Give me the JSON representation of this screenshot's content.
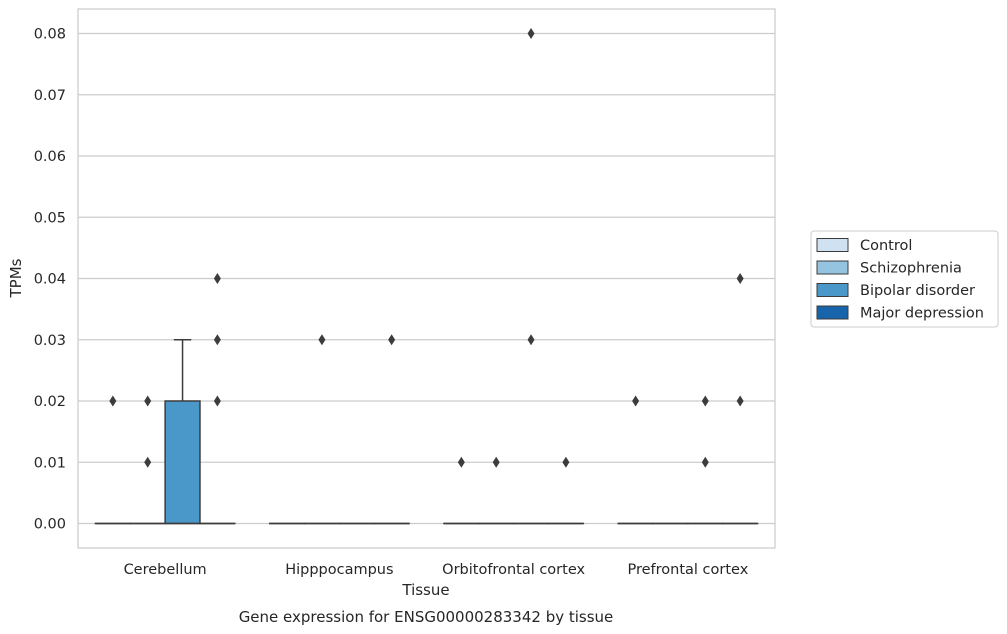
{
  "chart_data": {
    "type": "box",
    "title": "Gene expression for ENSG00000283342 by tissue",
    "xlabel": "Tissue",
    "ylabel": "TPMs",
    "ylim": [
      -0.004,
      0.084
    ],
    "yticks": [
      0.0,
      0.01,
      0.02,
      0.03,
      0.04,
      0.05,
      0.06,
      0.07,
      0.08
    ],
    "ytick_labels": [
      "0.00",
      "0.01",
      "0.02",
      "0.03",
      "0.04",
      "0.05",
      "0.06",
      "0.07",
      "0.08"
    ],
    "grid": true,
    "legend_position": "right",
    "categories": [
      "Cerebellum",
      "Hipppocampus",
      "Orbitofrontal cortex",
      "Prefrontal cortex"
    ],
    "series": [
      {
        "name": "Control",
        "color": "#d0e1f2",
        "boxes": [
          {
            "q1": 0,
            "median": 0,
            "q3": 0,
            "whislo": 0,
            "whishi": 0,
            "outliers": [
              0.02
            ]
          },
          {
            "q1": 0,
            "median": 0,
            "q3": 0,
            "whislo": 0,
            "whishi": 0,
            "outliers": []
          },
          {
            "q1": 0,
            "median": 0,
            "q3": 0,
            "whislo": 0,
            "whishi": 0,
            "outliers": [
              0.01
            ]
          },
          {
            "q1": 0,
            "median": 0,
            "q3": 0,
            "whislo": 0,
            "whishi": 0,
            "outliers": [
              0.02
            ]
          }
        ]
      },
      {
        "name": "Schizophrenia",
        "color": "#94c4df",
        "boxes": [
          {
            "q1": 0,
            "median": 0,
            "q3": 0,
            "whislo": 0,
            "whishi": 0,
            "outliers": [
              0.01,
              0.02
            ]
          },
          {
            "q1": 0,
            "median": 0,
            "q3": 0,
            "whislo": 0,
            "whishi": 0,
            "outliers": [
              0.03
            ]
          },
          {
            "q1": 0,
            "median": 0,
            "q3": 0,
            "whislo": 0,
            "whishi": 0,
            "outliers": [
              0.01
            ]
          },
          {
            "q1": 0,
            "median": 0,
            "q3": 0,
            "whislo": 0,
            "whishi": 0,
            "outliers": []
          }
        ]
      },
      {
        "name": "Bipolar disorder",
        "color": "#4a98c9",
        "boxes": [
          {
            "q1": 0,
            "median": 0,
            "q3": 0.02,
            "whislo": 0,
            "whishi": 0.03,
            "outliers": []
          },
          {
            "q1": 0,
            "median": 0,
            "q3": 0,
            "whislo": 0,
            "whishi": 0,
            "outliers": []
          },
          {
            "q1": 0,
            "median": 0,
            "q3": 0,
            "whislo": 0,
            "whishi": 0,
            "outliers": [
              0.03,
              0.08
            ]
          },
          {
            "q1": 0,
            "median": 0,
            "q3": 0,
            "whislo": 0,
            "whishi": 0,
            "outliers": [
              0.01,
              0.02
            ]
          }
        ]
      },
      {
        "name": "Major depression",
        "color": "#1764ab",
        "boxes": [
          {
            "q1": 0,
            "median": 0,
            "q3": 0,
            "whislo": 0,
            "whishi": 0,
            "outliers": [
              0.02,
              0.03,
              0.04
            ]
          },
          {
            "q1": 0,
            "median": 0,
            "q3": 0,
            "whislo": 0,
            "whishi": 0,
            "outliers": [
              0.03
            ]
          },
          {
            "q1": 0,
            "median": 0,
            "q3": 0,
            "whislo": 0,
            "whishi": 0,
            "outliers": [
              0.01
            ]
          },
          {
            "q1": 0,
            "median": 0,
            "q3": 0,
            "whislo": 0,
            "whishi": 0,
            "outliers": [
              0.02,
              0.04
            ]
          }
        ]
      }
    ]
  }
}
